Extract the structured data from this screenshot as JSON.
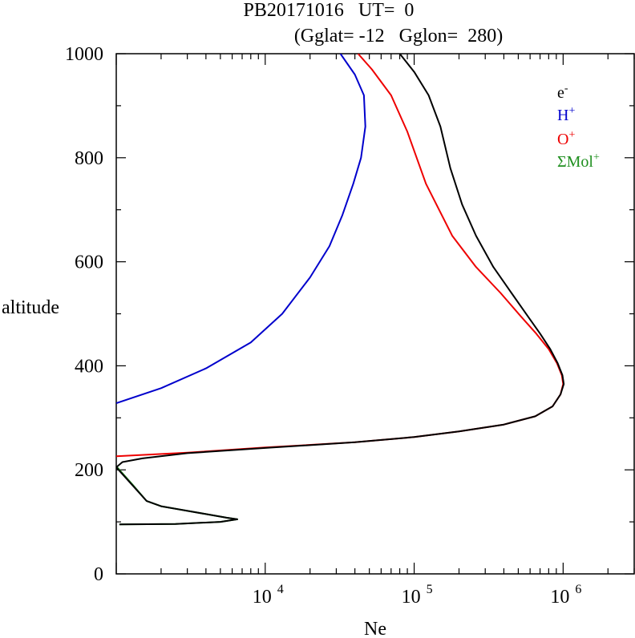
{
  "chart_data": {
    "type": "line",
    "title": "PB20171016   UT=  0",
    "subtitle": "(Gglat= -12   Gglon=  280)",
    "xlabel": "Ne",
    "ylabel": "altitude",
    "x_scale": "log",
    "xlim": [
      1000,
      3000000
    ],
    "ylim": [
      0,
      1000
    ],
    "x_ticks": [
      {
        "value": 10000,
        "base": "10",
        "exp": "4"
      },
      {
        "value": 100000,
        "base": "10",
        "exp": "5"
      },
      {
        "value": 1000000,
        "base": "10",
        "exp": "6"
      }
    ],
    "y_ticks": [
      0,
      200,
      400,
      600,
      800,
      1000
    ],
    "grid": false,
    "legend_position": "top-right",
    "series": [
      {
        "name": "e-",
        "label_base": "e",
        "label_sup": "-",
        "color": "#000000",
        "points": [
          [
            1050,
            95
          ],
          [
            2500,
            96
          ],
          [
            5000,
            100
          ],
          [
            6500,
            105
          ],
          [
            5500,
            108
          ],
          [
            4000,
            115
          ],
          [
            2000,
            130
          ],
          [
            1600,
            140
          ],
          [
            1000,
            205
          ],
          [
            1100,
            215
          ],
          [
            1500,
            222
          ],
          [
            3000,
            232
          ],
          [
            10000,
            242
          ],
          [
            40000,
            253
          ],
          [
            100000,
            263
          ],
          [
            200000,
            274
          ],
          [
            400000,
            287
          ],
          [
            650000,
            303
          ],
          [
            850000,
            322
          ],
          [
            960000,
            345
          ],
          [
            1010000,
            365
          ],
          [
            990000,
            382
          ],
          [
            920000,
            405
          ],
          [
            820000,
            432
          ],
          [
            700000,
            462
          ],
          [
            580000,
            495
          ],
          [
            450000,
            540
          ],
          [
            340000,
            590
          ],
          [
            260000,
            650
          ],
          [
            210000,
            710
          ],
          [
            175000,
            780
          ],
          [
            150000,
            860
          ],
          [
            125000,
            920
          ],
          [
            100000,
            965
          ],
          [
            80000,
            1000
          ]
        ]
      },
      {
        "name": "H+",
        "label_base": "H",
        "label_sup": "+",
        "color": "#0000cc",
        "points": [
          [
            1000,
            328
          ],
          [
            2000,
            357
          ],
          [
            4000,
            395
          ],
          [
            8000,
            445
          ],
          [
            13000,
            500
          ],
          [
            20000,
            570
          ],
          [
            27000,
            630
          ],
          [
            33000,
            690
          ],
          [
            39000,
            750
          ],
          [
            44000,
            800
          ],
          [
            47000,
            860
          ],
          [
            46000,
            920
          ],
          [
            40000,
            960
          ],
          [
            32000,
            1000
          ]
        ]
      },
      {
        "name": "O+",
        "label_base": "O",
        "label_sup": "+",
        "color": "#ee0000",
        "points": [
          [
            1000,
            226
          ],
          [
            3000,
            233
          ],
          [
            10000,
            243
          ],
          [
            40000,
            253
          ],
          [
            100000,
            263
          ],
          [
            200000,
            274
          ],
          [
            400000,
            287
          ],
          [
            650000,
            303
          ],
          [
            850000,
            322
          ],
          [
            960000,
            345
          ],
          [
            1000000,
            365
          ],
          [
            980000,
            382
          ],
          [
            910000,
            405
          ],
          [
            800000,
            432
          ],
          [
            660000,
            462
          ],
          [
            520000,
            495
          ],
          [
            380000,
            540
          ],
          [
            260000,
            590
          ],
          [
            180000,
            650
          ],
          [
            120000,
            750
          ],
          [
            90000,
            850
          ],
          [
            70000,
            920
          ],
          [
            52000,
            970
          ],
          [
            42000,
            1000
          ]
        ]
      },
      {
        "name": "ΣMol+",
        "label_base": "ΣMol",
        "label_sup": "+",
        "color": "#1f8f1f",
        "points": [
          [
            1050,
            95
          ],
          [
            2500,
            96
          ],
          [
            5000,
            100
          ],
          [
            6500,
            105
          ],
          [
            5500,
            108
          ],
          [
            4000,
            115
          ],
          [
            2000,
            130
          ],
          [
            1600,
            140
          ],
          [
            1300,
            170
          ],
          [
            1050,
            200
          ],
          [
            1000,
            207
          ]
        ]
      }
    ]
  }
}
